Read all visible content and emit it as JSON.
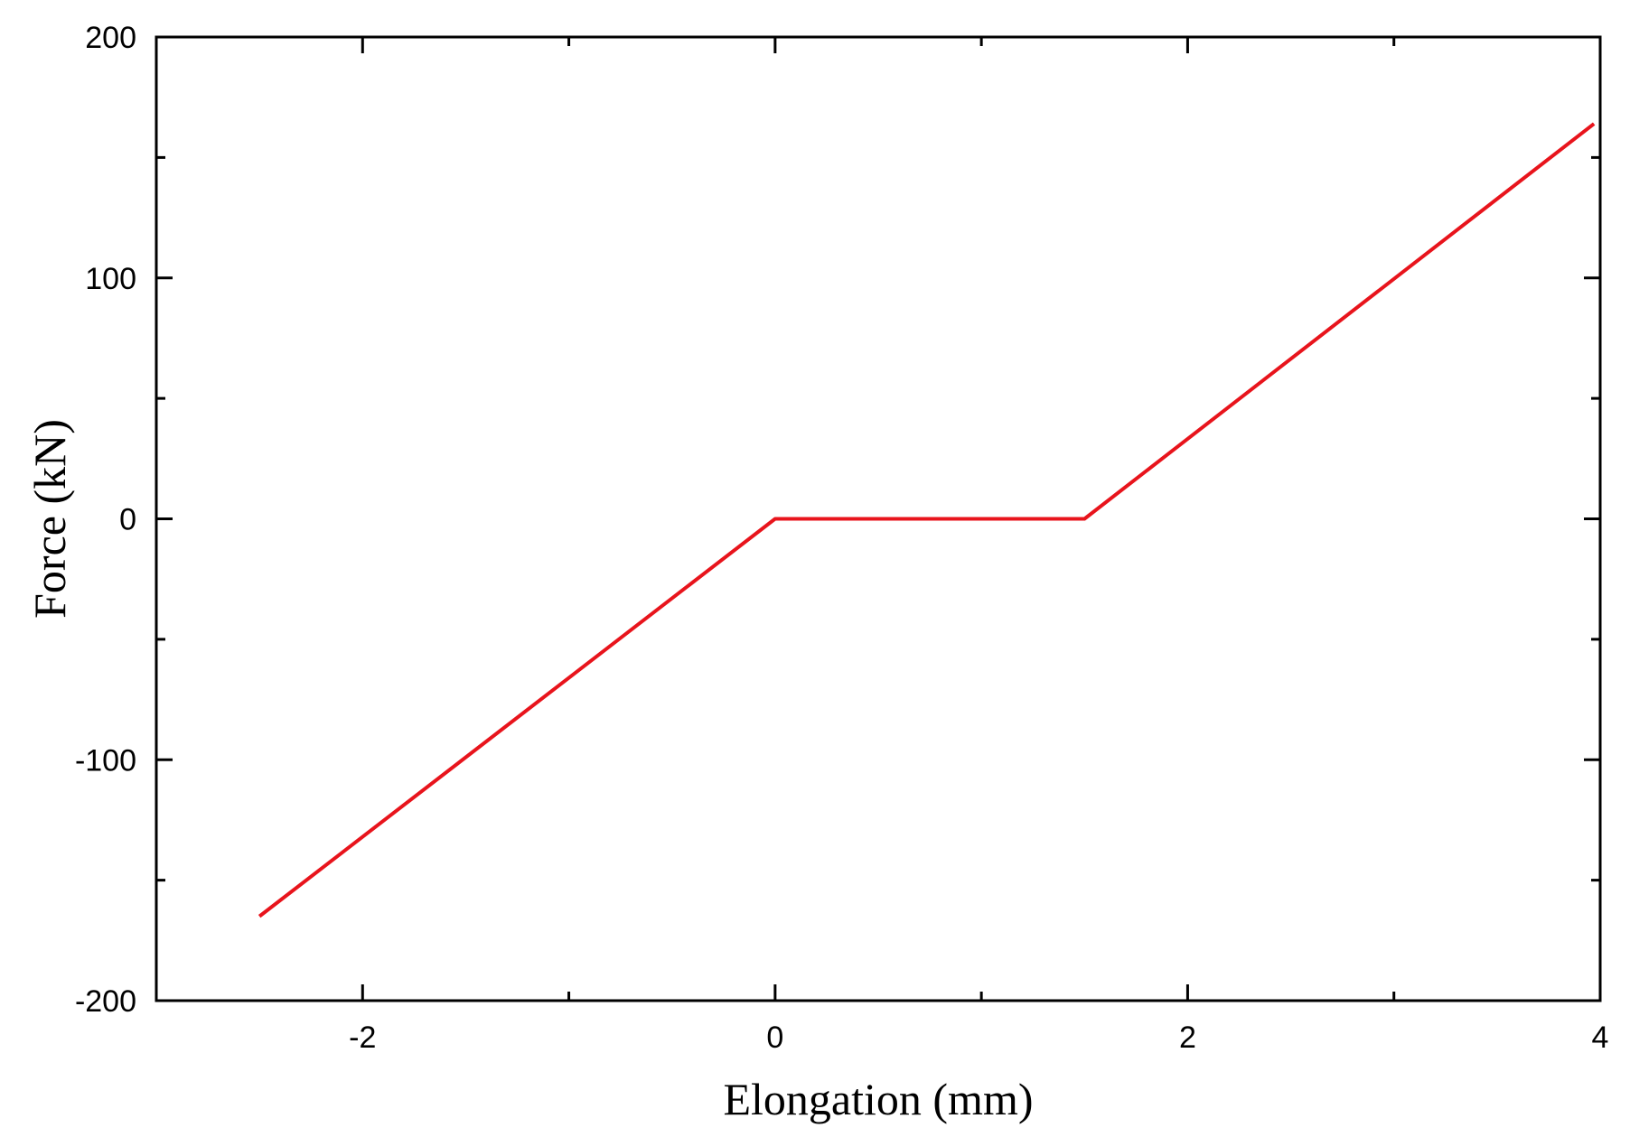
{
  "chart_data": {
    "type": "line",
    "title": "",
    "xlabel": "Elongation (mm)",
    "ylabel": "Force (kN)",
    "xlim": [
      -3,
      4
    ],
    "ylim": [
      -200,
      200
    ],
    "x_major_ticks": [
      -2,
      0,
      2,
      4
    ],
    "x_minor_ticks": [
      -1,
      1,
      3
    ],
    "y_major_ticks": [
      -200,
      -100,
      0,
      100,
      200
    ],
    "y_minor_ticks": [
      -150,
      -50,
      50,
      150
    ],
    "x_tick_labels": [
      "-2",
      "0",
      "2",
      "4"
    ],
    "y_tick_labels": [
      "-200",
      "-100",
      "0",
      "100",
      "200"
    ],
    "grid": false,
    "legend": "none",
    "series": [
      {
        "color": "#e8141c",
        "x": [
          -2.5,
          0,
          1.5,
          3.97
        ],
        "y": [
          -165,
          0,
          0,
          164
        ]
      }
    ]
  }
}
